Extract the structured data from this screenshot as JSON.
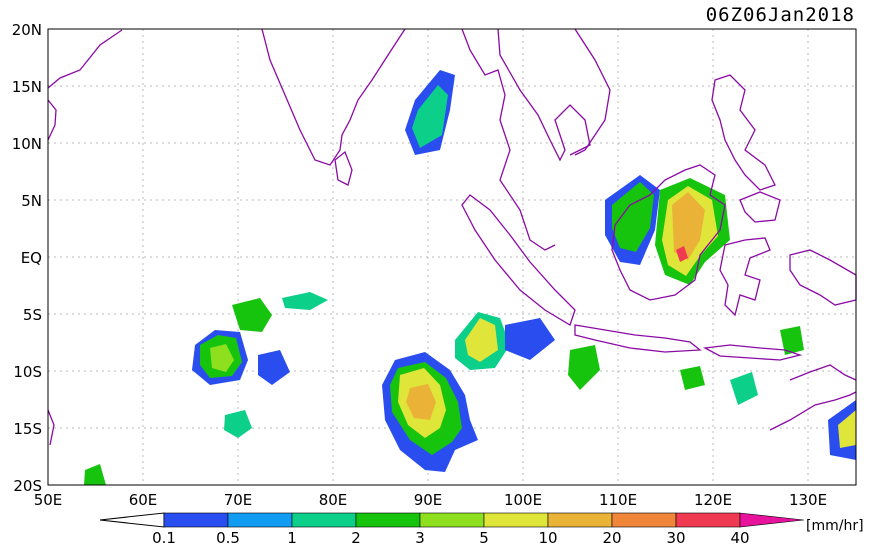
{
  "title": "06Z06Jan2018",
  "units": "[mm/hr]",
  "lat_labels": [
    "20N",
    "15N",
    "10N",
    "5N",
    "EQ",
    "5S",
    "10S",
    "15S",
    "20S"
  ],
  "lon_labels": [
    "50E",
    "60E",
    "70E",
    "80E",
    "90E",
    "100E",
    "110E",
    "120E",
    "130E"
  ],
  "colorbar": {
    "ticks": [
      "0.1",
      "0.5",
      "1",
      "2",
      "3",
      "5",
      "10",
      "20",
      "30",
      "40"
    ],
    "colors": [
      "#2a4df0",
      "#119cf2",
      "#0ccf8a",
      "#16c40e",
      "#8ee01f",
      "#e0e53a",
      "#eab338",
      "#f1853a",
      "#ef3a52",
      "#e8139c"
    ]
  },
  "map_colors": {
    "coast": "#8b0aa5",
    "grid": "#b9b9b9"
  }
}
